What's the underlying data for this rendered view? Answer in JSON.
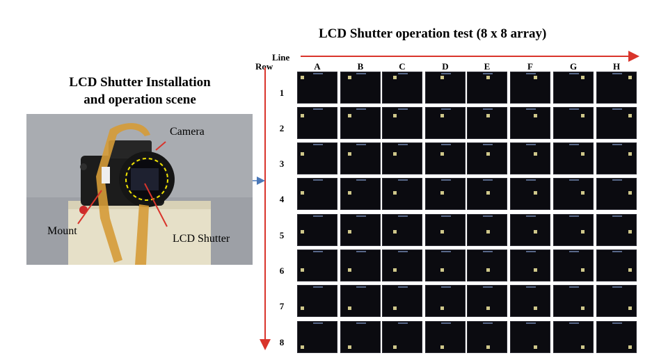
{
  "title": "LCD Shutter operation test  (8 x 8 array)",
  "installation_title_line1": "LCD Shutter Installation",
  "installation_title_line2": "and operation scene",
  "axis": {
    "line_label": "Line",
    "row_label": "Row"
  },
  "columns": [
    "A",
    "B",
    "C",
    "D",
    "E",
    "F",
    "G",
    "H"
  ],
  "rows": [
    "1",
    "2",
    "3",
    "4",
    "5",
    "6",
    "7",
    "8"
  ],
  "callouts": {
    "camera": "Camera",
    "mount": "Mount",
    "lcd_shutter": "LCD Shutter"
  },
  "colors": {
    "arrow_red": "#d9342b",
    "connector_blue": "#4a78b8",
    "highlight_yellow": "#f2e500",
    "lit_pixel": "#cfc78a"
  }
}
